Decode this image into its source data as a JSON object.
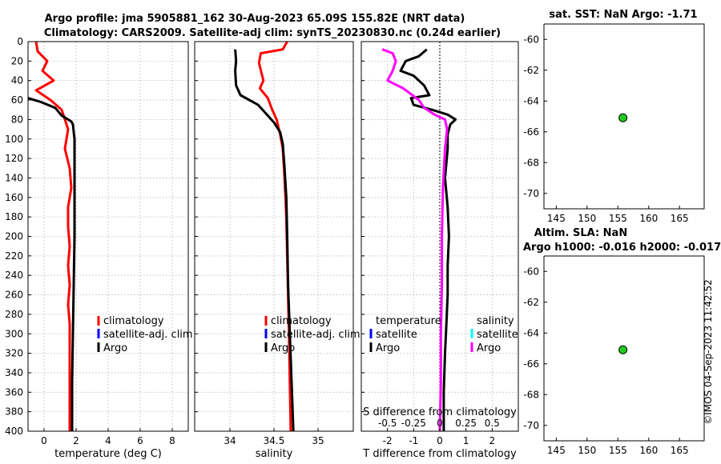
{
  "header": {
    "title_line1": "Argo profile: jma 5905881_162 30-Aug-2023 65.09S 155.82E (NRT data)",
    "title_line2": "Climatology: CARS2009. Satellite-adj clim: synTS_20230830.nc (0.24d earlier)"
  },
  "sst_title": "sat. SST: NaN Argo: -1.71",
  "sla_title_line1": "Altim. SLA: NaN",
  "sla_title_line2": "Argo h1000: -0.016 h2000: -0.017",
  "timestamp": "©IMOS 04-Sep-2023 11:42:52",
  "colors": {
    "climatology": "#ff0000",
    "satellite": "#0000ff",
    "argo": "#000000",
    "salinity_diff": "#ff00ff",
    "salinity_satellite": "#00ffff",
    "marker": "#22cc22"
  },
  "chart_data": [
    {
      "type": "line",
      "panel": "temperature",
      "xlabel": "temperature (deg C)",
      "ylabel": "",
      "xlim": [
        -1,
        9
      ],
      "ylim": [
        400,
        0
      ],
      "xticks": [
        0,
        2,
        4,
        6,
        8
      ],
      "yticks": [
        0,
        20,
        40,
        60,
        80,
        100,
        120,
        140,
        160,
        180,
        200,
        220,
        240,
        260,
        280,
        300,
        320,
        340,
        360,
        380,
        400
      ],
      "grid": true,
      "legend": [
        "climatology",
        "satellite-adj. clim",
        "Argo"
      ],
      "series": [
        {
          "name": "climatology",
          "color": "#ff0000",
          "points": [
            [
              -0.5,
              0
            ],
            [
              -0.4,
              10
            ],
            [
              0.2,
              20
            ],
            [
              -0.1,
              30
            ],
            [
              0.6,
              40
            ],
            [
              -0.5,
              50
            ],
            [
              0.4,
              60
            ],
            [
              1.1,
              70
            ],
            [
              1.3,
              80
            ],
            [
              1.5,
              90
            ],
            [
              1.4,
              100
            ],
            [
              1.3,
              110
            ],
            [
              1.6,
              130
            ],
            [
              1.7,
              150
            ],
            [
              1.5,
              170
            ],
            [
              1.5,
              190
            ],
            [
              1.6,
              210
            ],
            [
              1.5,
              230
            ],
            [
              1.6,
              250
            ],
            [
              1.5,
              270
            ],
            [
              1.6,
              290
            ],
            [
              1.6,
              310
            ],
            [
              1.6,
              340
            ],
            [
              1.6,
              370
            ],
            [
              1.6,
              400
            ]
          ]
        },
        {
          "name": "Argo",
          "color": "#000000",
          "points": [
            [
              -1,
              58
            ],
            [
              -0.2,
              62
            ],
            [
              0.7,
              68
            ],
            [
              1.1,
              76
            ],
            [
              1.7,
              82
            ],
            [
              1.8,
              85
            ],
            [
              1.9,
              100
            ],
            [
              1.9,
              150
            ],
            [
              1.9,
              200
            ],
            [
              1.85,
              250
            ],
            [
              1.8,
              300
            ],
            [
              1.75,
              350
            ],
            [
              1.75,
              400
            ]
          ]
        }
      ]
    },
    {
      "type": "line",
      "panel": "salinity",
      "xlabel": "salinity",
      "ylabel": "",
      "xlim": [
        33.6,
        35.4
      ],
      "ylim": [
        400,
        0
      ],
      "xticks": [
        34,
        34.5,
        35
      ],
      "grid": true,
      "legend": [
        "climatology",
        "satellite-adj. clim",
        "Argo"
      ],
      "series": [
        {
          "name": "climatology",
          "color": "#ff0000",
          "points": [
            [
              34.65,
              0
            ],
            [
              34.6,
              8
            ],
            [
              34.35,
              12
            ],
            [
              34.33,
              22
            ],
            [
              34.38,
              40
            ],
            [
              34.34,
              48
            ],
            [
              34.43,
              58
            ],
            [
              34.48,
              70
            ],
            [
              34.53,
              80
            ],
            [
              34.57,
              95
            ],
            [
              34.6,
              110
            ],
            [
              34.62,
              140
            ],
            [
              34.64,
              180
            ],
            [
              34.65,
              220
            ],
            [
              34.66,
              260
            ],
            [
              34.67,
              300
            ],
            [
              34.68,
              350
            ],
            [
              34.69,
              400
            ]
          ]
        },
        {
          "name": "Argo",
          "color": "#000000",
          "points": [
            [
              34.06,
              8
            ],
            [
              34.07,
              20
            ],
            [
              34.06,
              30
            ],
            [
              34.07,
              45
            ],
            [
              34.12,
              55
            ],
            [
              34.22,
              60
            ],
            [
              34.32,
              65
            ],
            [
              34.42,
              75
            ],
            [
              34.5,
              83
            ],
            [
              34.57,
              93
            ],
            [
              34.6,
              105
            ],
            [
              34.62,
              130
            ],
            [
              34.64,
              160
            ],
            [
              34.65,
              200
            ],
            [
              34.66,
              250
            ],
            [
              34.68,
              300
            ],
            [
              34.7,
              350
            ],
            [
              34.72,
              400
            ]
          ]
        }
      ]
    },
    {
      "type": "line",
      "panel": "difference",
      "xlabel": "T difference from climatology",
      "xlabel2": "S difference from climatology",
      "xlim": [
        -3,
        3
      ],
      "xlim_salinity": [
        -0.75,
        0.75
      ],
      "ylim": [
        400,
        0
      ],
      "xticks": [
        -2,
        -1,
        0,
        1,
        2
      ],
      "xtick_labels": [
        "-2",
        "-1",
        "0",
        "1",
        "2"
      ],
      "xticks2": [
        -0.5,
        -0.25,
        0,
        0.25,
        0.5
      ],
      "xtick2_labels": [
        "-0.5",
        "-0.25",
        "0",
        "0.25",
        "0.5"
      ],
      "grid": true,
      "legend_left": [
        "temperature",
        "satellite",
        "Argo"
      ],
      "legend_right": [
        "salinity",
        "satellite",
        "Argo"
      ],
      "series": [
        {
          "name": "T Argo diff",
          "color": "#000000",
          "points": [
            [
              -0.5,
              8
            ],
            [
              -0.8,
              15
            ],
            [
              -1.3,
              20
            ],
            [
              -1.5,
              30
            ],
            [
              -1.0,
              35
            ],
            [
              -0.6,
              45
            ],
            [
              -0.4,
              55
            ],
            [
              -1.1,
              58
            ],
            [
              -1.0,
              65
            ],
            [
              -0.3,
              70
            ],
            [
              0.3,
              75
            ],
            [
              0.6,
              80
            ],
            [
              0.4,
              85
            ],
            [
              0.3,
              95
            ],
            [
              0.3,
              110
            ],
            [
              0.2,
              140
            ],
            [
              0.3,
              170
            ],
            [
              0.35,
              200
            ],
            [
              0.3,
              230
            ],
            [
              0.3,
              260
            ],
            [
              0.25,
              290
            ],
            [
              0.2,
              320
            ],
            [
              0.15,
              360
            ],
            [
              0.15,
              400
            ]
          ]
        },
        {
          "name": "S Argo diff",
          "color": "#ff00ff",
          "points": [
            [
              -0.55,
              8
            ],
            [
              -0.45,
              12
            ],
            [
              -0.42,
              20
            ],
            [
              -0.45,
              30
            ],
            [
              -0.5,
              40
            ],
            [
              -0.35,
              48
            ],
            [
              -0.2,
              60
            ],
            [
              -0.15,
              68
            ],
            [
              -0.05,
              75
            ],
            [
              0.05,
              80
            ],
            [
              0.07,
              90
            ],
            [
              0.05,
              110
            ],
            [
              0.03,
              150
            ],
            [
              0.02,
              200
            ],
            [
              0.02,
              250
            ],
            [
              0.01,
              300
            ],
            [
              0.01,
              350
            ],
            [
              0.0,
              400
            ]
          ]
        }
      ]
    },
    {
      "type": "scatter",
      "panel": "sst_map",
      "title": "sat. SST: NaN Argo: -1.71",
      "xlim": [
        143,
        169
      ],
      "ylim": [
        -71,
        -59
      ],
      "xticks": [
        145,
        150,
        155,
        160,
        165
      ],
      "yticks": [
        -60,
        -62,
        -64,
        -66,
        -68,
        -70
      ],
      "points": [
        [
          155.82,
          -65.09
        ]
      ]
    },
    {
      "type": "scatter",
      "panel": "sla_map",
      "title": "Altim. SLA: NaN",
      "xlim": [
        143,
        169
      ],
      "ylim": [
        -71,
        -59
      ],
      "xticks": [
        145,
        150,
        155,
        160,
        165
      ],
      "yticks": [
        -60,
        -62,
        -64,
        -66,
        -68,
        -70
      ],
      "points": [
        [
          155.82,
          -65.09
        ]
      ]
    }
  ]
}
